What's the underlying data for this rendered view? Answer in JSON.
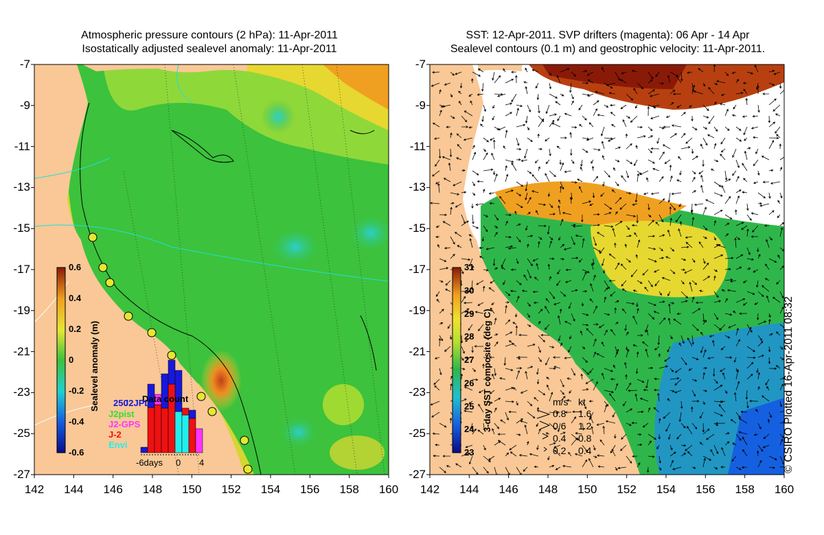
{
  "left_panel": {
    "title_line1": "Atmospheric pressure contours (2 hPa): 11-Apr-2011",
    "title_line2": "Isostatically adjusted sealevel anomaly: 11-Apr-2011",
    "colorbar": {
      "label": "Sealevel anomaly (m)",
      "ticks": [
        "0.6",
        "0.4",
        "0.2",
        "0",
        "-0.2",
        "-0.4",
        "-0.6"
      ],
      "range": [
        -0.6,
        0.6
      ]
    },
    "data_count": {
      "title": "Data count",
      "max_label": "250",
      "xaxis_labels": [
        "-6days",
        "0",
        "4"
      ],
      "satellites": [
        {
          "name": "J2JPL",
          "color": "#1818d8"
        },
        {
          "name": "J2pist",
          "color": "#33dd33"
        },
        {
          "name": "J2-GPS",
          "color": "#ff33ff"
        },
        {
          "name": "J-2",
          "color": "#ee1111"
        },
        {
          "name": "Envi",
          "color": "#22eeee"
        }
      ]
    }
  },
  "right_panel": {
    "title_line1": "SST: 12-Apr-2011. SVP drifters (magenta): 06 Apr - 14 Apr",
    "title_line2": "Sealevel contours (0.1 m) and geostrophic velocity: 11-Apr-2011.",
    "colorbar": {
      "label": "3-day SST composite (deg C)",
      "ticks": [
        "31",
        "30",
        "29",
        "28",
        "27",
        "26",
        "25",
        "24",
        "23"
      ],
      "range": [
        23,
        31
      ]
    },
    "velocity_legend": {
      "header_ms": "m/s",
      "header_kt": "kt",
      "rows": [
        {
          "ms": "0.8",
          "kt": "1.6"
        },
        {
          "ms": "0.6",
          "kt": "1.2"
        },
        {
          "ms": "0.4",
          "kt": "0.8"
        },
        {
          "ms": "0.2",
          "kt": "0.4"
        }
      ]
    }
  },
  "axes": {
    "y_ticks": [
      "-7",
      "-9",
      "-11",
      "-13",
      "-15",
      "-17",
      "-19",
      "-21",
      "-23",
      "-25",
      "-27"
    ],
    "x_ticks": [
      "142",
      "144",
      "146",
      "148",
      "150",
      "152",
      "154",
      "156",
      "158",
      "160"
    ],
    "lat_range": [
      -27,
      -7
    ],
    "lon_range": [
      142,
      160
    ]
  },
  "credit": "© CSIRO Plotted 16-Apr-2011 08:32",
  "colors": {
    "land": "#f9c896",
    "sla_green": "#3cc23c",
    "sst_green": "#2fb64a"
  }
}
